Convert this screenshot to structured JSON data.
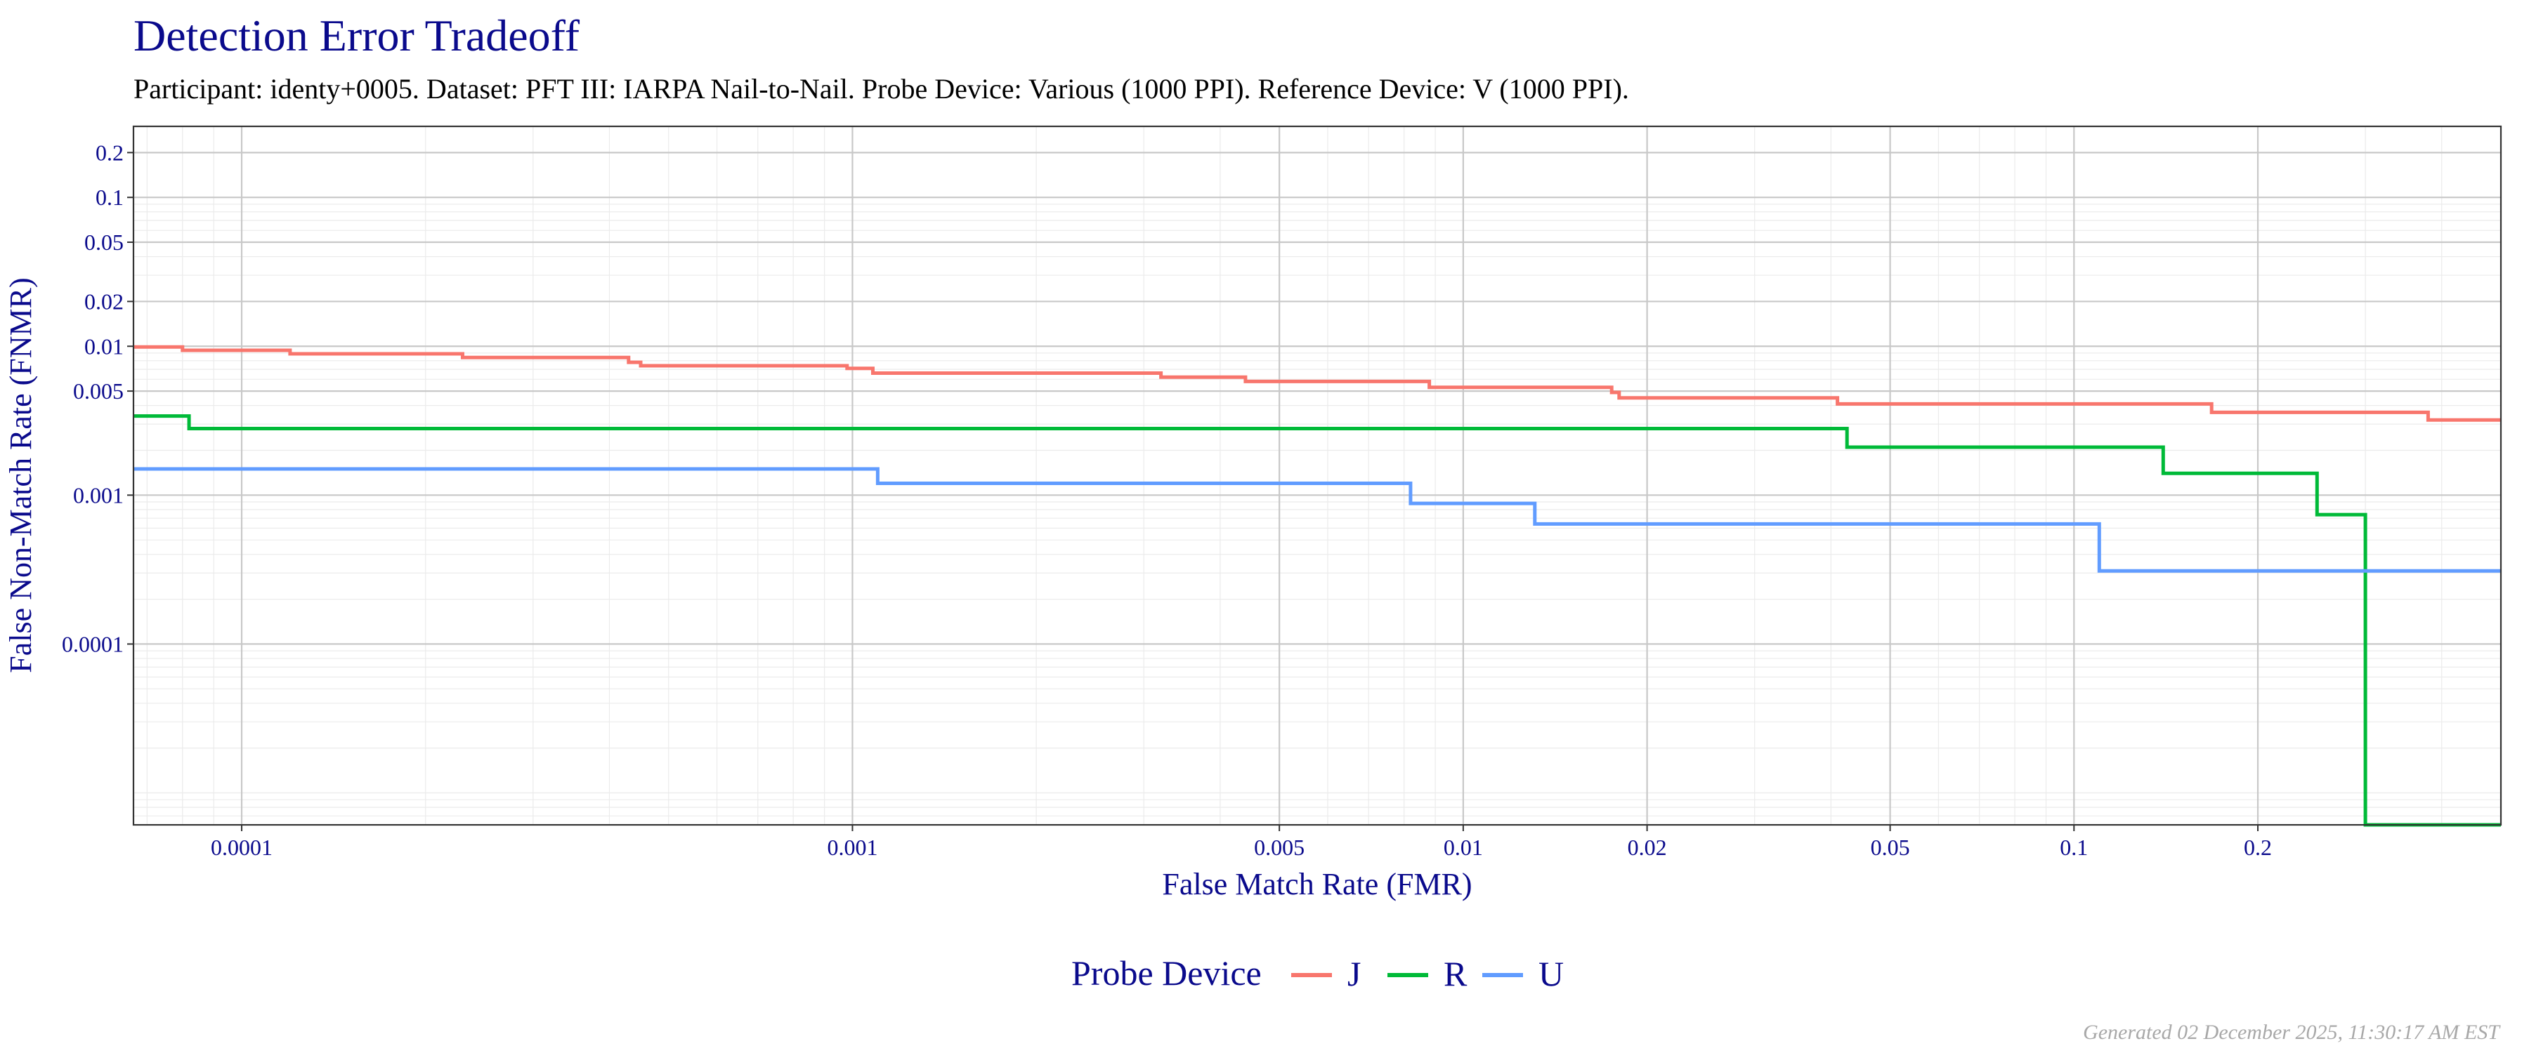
{
  "chart_data": {
    "type": "line",
    "step": true,
    "title": "Detection Error Tradeoff",
    "subtitle": "Participant: identy+0005. Dataset: PFT III: IARPA Nail-to-Nail. Probe Device: Various (1000 PPI). Reference Device: V (1000 PPI).",
    "xlabel": "False Match Rate (FMR)",
    "ylabel": "False Non-Match Rate (FNMR)",
    "xscale": "log",
    "yscale": "log",
    "xlim": [
      6.65e-05,
      0.5
    ],
    "ylim": [
      6.1e-06,
      0.3
    ],
    "x_ticks": [
      {
        "value": 0.0001,
        "label": "0.0001"
      },
      {
        "value": 0.001,
        "label": "0.001"
      },
      {
        "value": 0.005,
        "label": "0.005"
      },
      {
        "value": 0.01,
        "label": "0.01"
      },
      {
        "value": 0.02,
        "label": "0.02"
      },
      {
        "value": 0.05,
        "label": "0.05"
      },
      {
        "value": 0.1,
        "label": "0.1"
      },
      {
        "value": 0.2,
        "label": "0.2"
      }
    ],
    "y_ticks": [
      {
        "value": 0.0001,
        "label": "0.0001"
      },
      {
        "value": 0.001,
        "label": "0.001"
      },
      {
        "value": 0.005,
        "label": "0.005"
      },
      {
        "value": 0.01,
        "label": "0.01"
      },
      {
        "value": 0.02,
        "label": "0.02"
      },
      {
        "value": 0.05,
        "label": "0.05"
      },
      {
        "value": 0.1,
        "label": "0.1"
      },
      {
        "value": 0.2,
        "label": "0.2"
      }
    ],
    "grid": true,
    "legend": {
      "title": "Probe Device",
      "position": "bottom"
    },
    "series": [
      {
        "name": "J",
        "color": "#f8766d",
        "points": [
          [
            6.65e-05,
            0.0099
          ],
          [
            8e-05,
            0.0094
          ],
          [
            0.00012,
            0.0089
          ],
          [
            0.00023,
            0.0084
          ],
          [
            0.00043,
            0.0078
          ],
          [
            0.00045,
            0.0074
          ],
          [
            0.00098,
            0.0071
          ],
          [
            0.00108,
            0.0066
          ],
          [
            0.0032,
            0.0062
          ],
          [
            0.0044,
            0.0058
          ],
          [
            0.0088,
            0.0053
          ],
          [
            0.0175,
            0.0049
          ],
          [
            0.018,
            0.0045
          ],
          [
            0.041,
            0.0041
          ],
          [
            0.168,
            0.0036
          ],
          [
            0.38,
            0.0032
          ],
          [
            0.5,
            0.0032
          ]
        ]
      },
      {
        "name": "R",
        "color": "#00ba38",
        "points": [
          [
            6.65e-05,
            0.0034
          ],
          [
            8.2e-05,
            0.0028
          ],
          [
            0.0425,
            0.0021
          ],
          [
            0.14,
            0.0014
          ],
          [
            0.25,
            0.00074
          ],
          [
            0.3,
            6.1e-06
          ],
          [
            0.5,
            6.1e-06
          ]
        ]
      },
      {
        "name": "U",
        "color": "#619cff",
        "points": [
          [
            6.65e-05,
            0.0015
          ],
          [
            0.0011,
            0.0012
          ],
          [
            0.0082,
            0.00088
          ],
          [
            0.0131,
            0.00064
          ],
          [
            0.11,
            0.00031
          ],
          [
            0.5,
            0.00031
          ]
        ]
      }
    ]
  },
  "footer": "Generated 02 December 2025, 11:30:17 AM EST"
}
